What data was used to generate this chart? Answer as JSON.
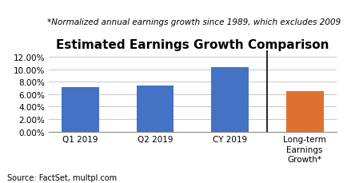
{
  "title": "Estimated Earnings Growth Comparison",
  "subtitle": "*Normalized annual earnings growth since 1989, which excludes 2009",
  "source": "Source: FactSet, multpl.com",
  "categories": [
    "Q1 2019",
    "Q2 2019",
    "CY 2019",
    "Long-term\nEarnings\nGrowth*"
  ],
  "values": [
    0.071,
    0.074,
    0.103,
    0.065
  ],
  "bar_colors": [
    "#4472c4",
    "#4472c4",
    "#4472c4",
    "#e07032"
  ],
  "ylim": [
    0,
    0.13
  ],
  "yticks": [
    0.0,
    0.02,
    0.04,
    0.06,
    0.08,
    0.1,
    0.12
  ],
  "title_fontsize": 11,
  "subtitle_fontsize": 7.5,
  "source_fontsize": 7,
  "tick_fontsize": 7.5,
  "background_color": "#ffffff",
  "grid_color": "#c8c8c8",
  "bar_width": 0.5
}
